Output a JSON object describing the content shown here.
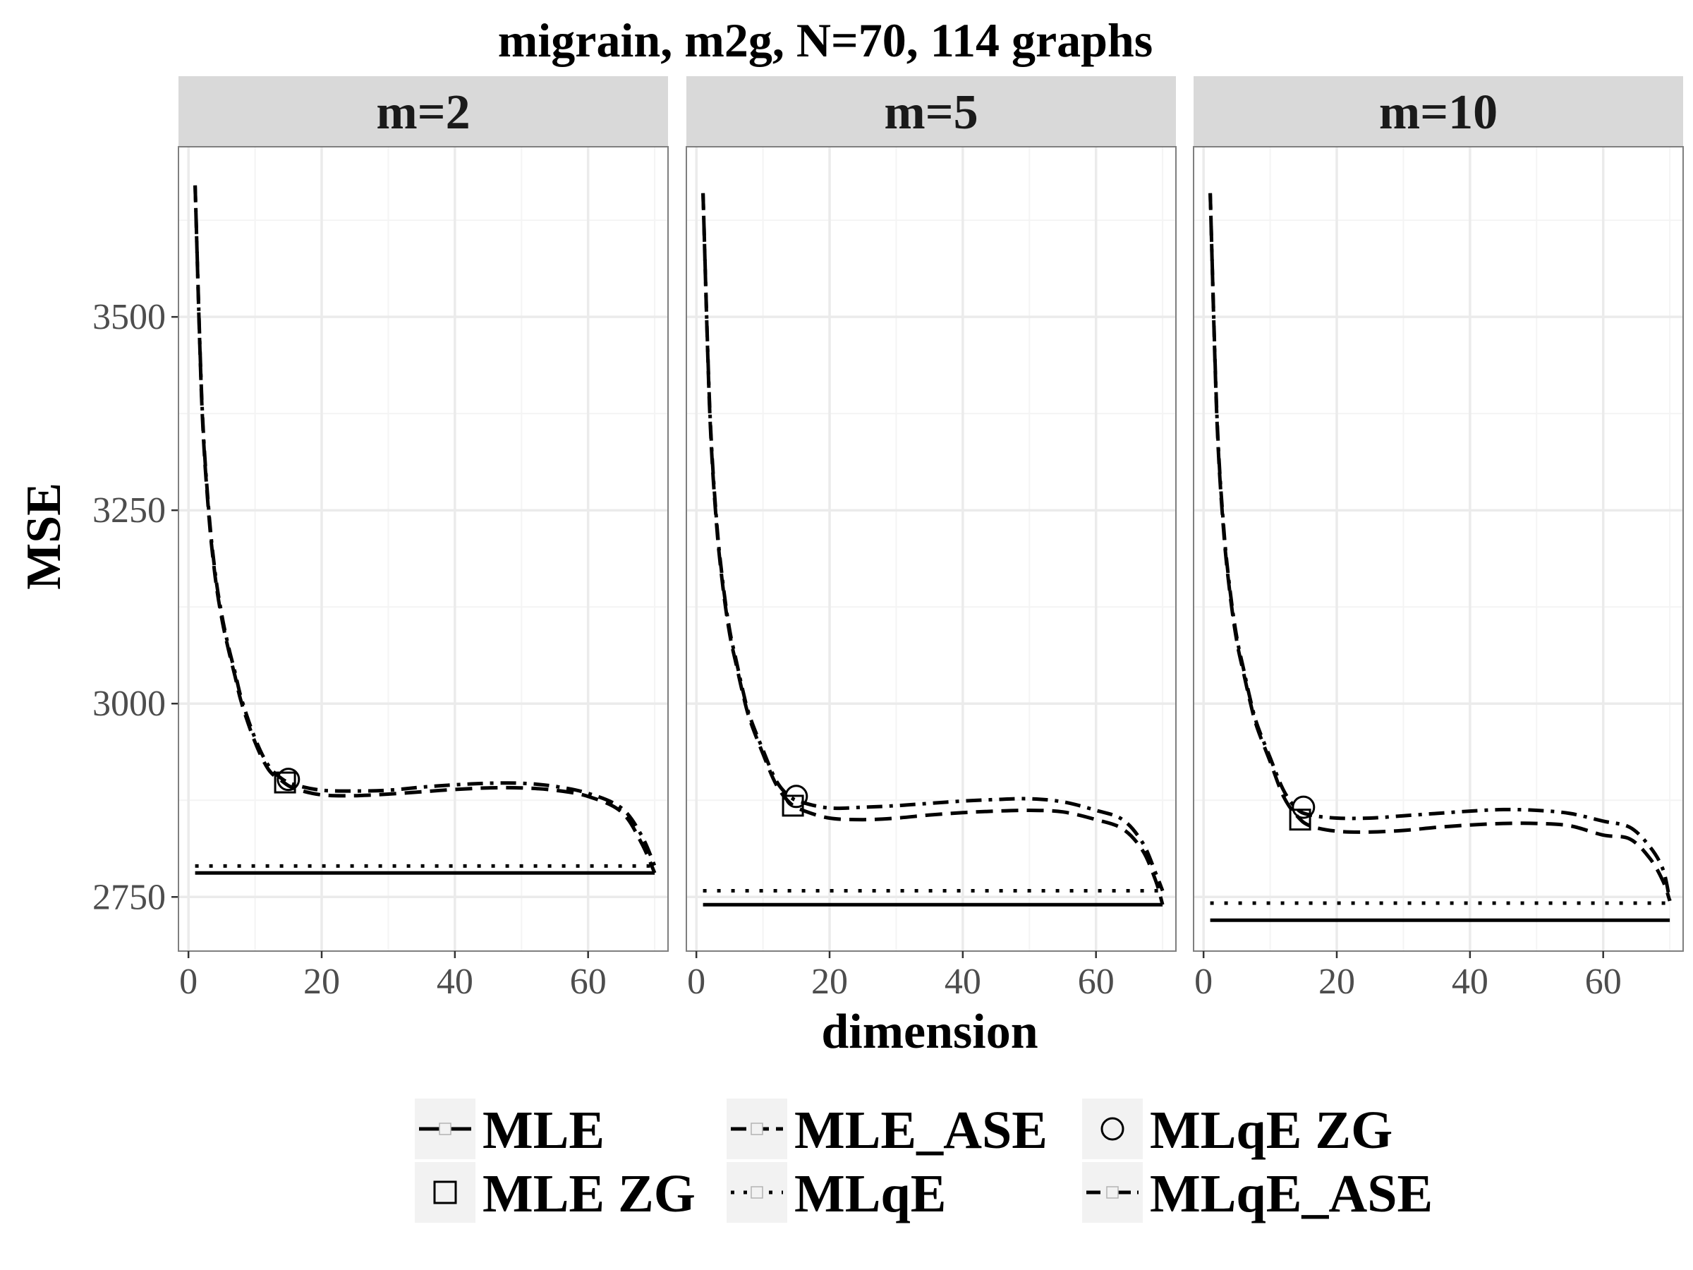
{
  "chart_data": {
    "type": "line",
    "title": "migrain, m2g, N=70, 114 graphs",
    "xlabel": "dimension",
    "ylabel": "MSE",
    "xlim": [
      -1.5,
      72
    ],
    "ylim": [
      2680,
      3720
    ],
    "x_ticks": [
      0,
      20,
      40,
      60
    ],
    "y_ticks": [
      2750,
      3000,
      3250,
      3500
    ],
    "grid": true,
    "legend_position": "bottom",
    "panels": [
      {
        "label": "m=2",
        "series": [
          {
            "name": "MLE",
            "x": [
              1,
              70
            ],
            "y": [
              2781,
              2781
            ]
          },
          {
            "name": "MLqE",
            "x": [
              1,
              70
            ],
            "y": [
              2790,
              2790
            ]
          },
          {
            "name": "MLE_ASE",
            "x": [
              1,
              2,
              3,
              4,
              5,
              6,
              7,
              8,
              10,
              12,
              14,
              16,
              20,
              25,
              30,
              35,
              40,
              45,
              50,
              55,
              60,
              65,
              68,
              70
            ],
            "y": [
              3670,
              3390,
              3250,
              3165,
              3110,
              3070,
              3035,
              3000,
              2950,
              2915,
              2900,
              2890,
              2882,
              2881,
              2883,
              2886,
              2889,
              2891,
              2891,
              2888,
              2880,
              2860,
              2820,
              2781
            ]
          },
          {
            "name": "MLqE_ASE",
            "x": [
              1,
              2,
              3,
              4,
              5,
              6,
              7,
              8,
              10,
              12,
              14,
              16,
              20,
              25,
              30,
              35,
              40,
              45,
              50,
              55,
              60,
              65,
              68,
              70
            ],
            "y": [
              3670,
              3395,
              3255,
              3170,
              3115,
              3074,
              3040,
              3005,
              2955,
              2920,
              2903,
              2895,
              2888,
              2887,
              2888,
              2892,
              2895,
              2897,
              2897,
              2893,
              2884,
              2865,
              2830,
              2790
            ]
          }
        ],
        "markers": [
          {
            "name": "MLE ZG",
            "shape": "square",
            "x": 14.5,
            "y": 2898
          },
          {
            "name": "MLqE ZG",
            "shape": "circle",
            "x": 15,
            "y": 2902
          }
        ]
      },
      {
        "label": "m=5",
        "series": [
          {
            "name": "MLE",
            "x": [
              1,
              70
            ],
            "y": [
              2740,
              2740
            ]
          },
          {
            "name": "MLqE",
            "x": [
              1,
              70
            ],
            "y": [
              2758,
              2758
            ]
          },
          {
            "name": "MLE_ASE",
            "x": [
              1,
              2,
              3,
              4,
              5,
              6,
              7,
              8,
              10,
              12,
              14,
              16,
              20,
              25,
              30,
              35,
              40,
              45,
              50,
              55,
              60,
              64,
              67,
              69,
              70
            ],
            "y": [
              3660,
              3380,
              3235,
              3150,
              3090,
              3050,
              3012,
              2980,
              2935,
              2895,
              2872,
              2862,
              2852,
              2850,
              2852,
              2856,
              2859,
              2861,
              2862,
              2860,
              2850,
              2838,
              2810,
              2770,
              2740
            ]
          },
          {
            "name": "MLqE_ASE",
            "x": [
              1,
              2,
              3,
              4,
              5,
              6,
              7,
              8,
              10,
              12,
              14,
              16,
              20,
              25,
              30,
              35,
              40,
              45,
              50,
              55,
              60,
              64,
              67,
              69,
              70
            ],
            "y": [
              3660,
              3385,
              3240,
              3155,
              3095,
              3055,
              3016,
              2984,
              2940,
              2900,
              2880,
              2872,
              2865,
              2866,
              2868,
              2871,
              2874,
              2876,
              2877,
              2873,
              2862,
              2850,
              2820,
              2780,
              2758
            ]
          }
        ],
        "markers": [
          {
            "name": "MLE ZG",
            "shape": "square",
            "x": 14.5,
            "y": 2868
          },
          {
            "name": "MLqE ZG",
            "shape": "circle",
            "x": 15,
            "y": 2880
          }
        ]
      },
      {
        "label": "m=10",
        "series": [
          {
            "name": "MLE",
            "x": [
              1,
              70
            ],
            "y": [
              2720,
              2720
            ]
          },
          {
            "name": "MLqE",
            "x": [
              1,
              70
            ],
            "y": [
              2742,
              2742
            ]
          },
          {
            "name": "MLE_ASE",
            "x": [
              1,
              2,
              3,
              4,
              5,
              6,
              7,
              8,
              10,
              12,
              14,
              16,
              20,
              25,
              30,
              35,
              40,
              45,
              50,
              55,
              60,
              64,
              67,
              69,
              70
            ],
            "y": [
              3660,
              3370,
              3225,
              3140,
              3080,
              3040,
              3002,
              2970,
              2925,
              2880,
              2855,
              2842,
              2835,
              2834,
              2836,
              2840,
              2843,
              2845,
              2845,
              2842,
              2830,
              2825,
              2800,
              2770,
              2745
            ]
          },
          {
            "name": "MLqE_ASE",
            "x": [
              1,
              2,
              3,
              4,
              5,
              6,
              7,
              8,
              10,
              12,
              14,
              16,
              20,
              25,
              30,
              35,
              40,
              45,
              50,
              55,
              60,
              64,
              67,
              69,
              70
            ],
            "y": [
              3660,
              3375,
              3230,
              3145,
              3085,
              3045,
              3006,
              2974,
              2930,
              2888,
              2864,
              2856,
              2852,
              2852,
              2855,
              2858,
              2861,
              2863,
              2862,
              2858,
              2848,
              2840,
              2815,
              2785,
              2745
            ]
          }
        ],
        "markers": [
          {
            "name": "MLE ZG",
            "shape": "square",
            "x": 14.5,
            "y": 2850
          },
          {
            "name": "MLqE ZG",
            "shape": "circle",
            "x": 15,
            "y": 2866
          }
        ]
      }
    ],
    "legend": [
      {
        "name": "MLE",
        "line": "solid",
        "shape": "square-small"
      },
      {
        "name": "MLE ZG",
        "line": "none",
        "shape": "square"
      },
      {
        "name": "MLE_ASE",
        "line": "longdash",
        "shape": "square-small"
      },
      {
        "name": "MLqE",
        "line": "dotted",
        "shape": "square-small"
      },
      {
        "name": "MLqE ZG",
        "line": "none",
        "shape": "circle"
      },
      {
        "name": "MLqE_ASE",
        "line": "dotdash",
        "shape": "square-small"
      }
    ]
  }
}
